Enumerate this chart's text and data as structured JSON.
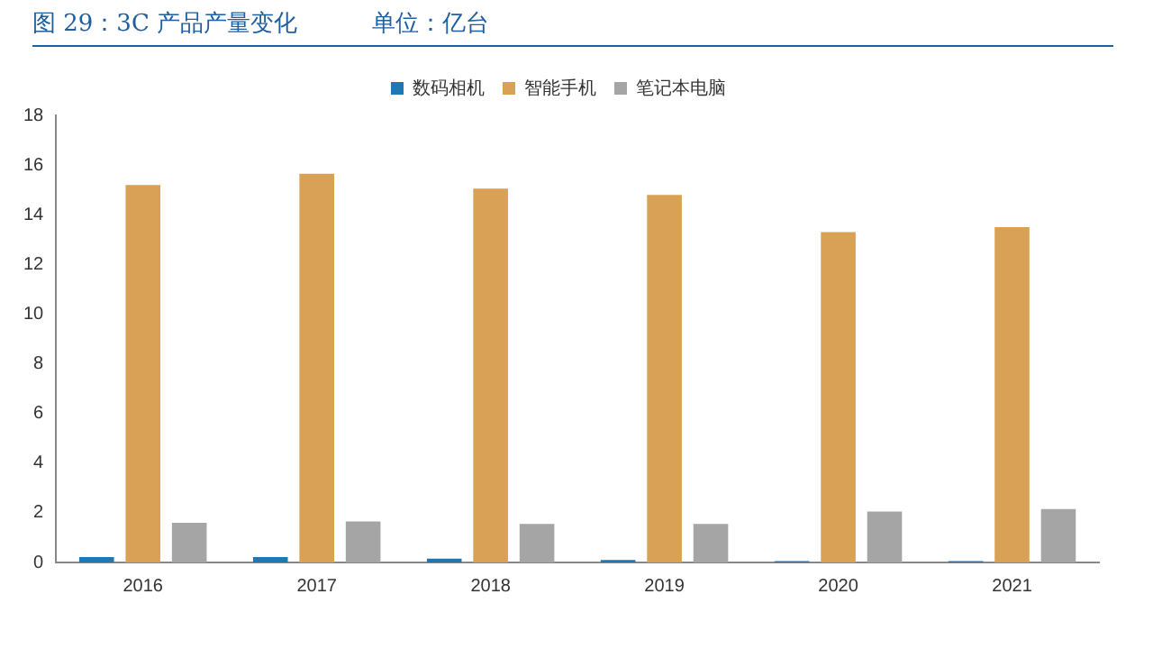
{
  "chart_data": {
    "type": "bar",
    "title": "图 29：3C 产品产量变化          单位：亿台",
    "categories": [
      "2016",
      "2017",
      "2018",
      "2019",
      "2020",
      "2021"
    ],
    "series": [
      {
        "name": "数码相机",
        "color": "#1f77b4",
        "values": [
          0.22,
          0.22,
          0.15,
          0.1,
          0.05,
          0.05
        ]
      },
      {
        "name": "智能手机",
        "color": "#d9a156",
        "values": [
          15.2,
          15.65,
          15.05,
          14.8,
          13.3,
          13.5
        ]
      },
      {
        "name": "笔记本电脑",
        "color": "#a5a5a5",
        "values": [
          1.6,
          1.65,
          1.55,
          1.55,
          2.05,
          2.15
        ]
      }
    ],
    "ylim": [
      0,
      18
    ],
    "yticks": [
      0,
      2,
      4,
      6,
      8,
      10,
      12,
      14,
      16,
      18
    ],
    "grid": false,
    "legend": "top"
  }
}
